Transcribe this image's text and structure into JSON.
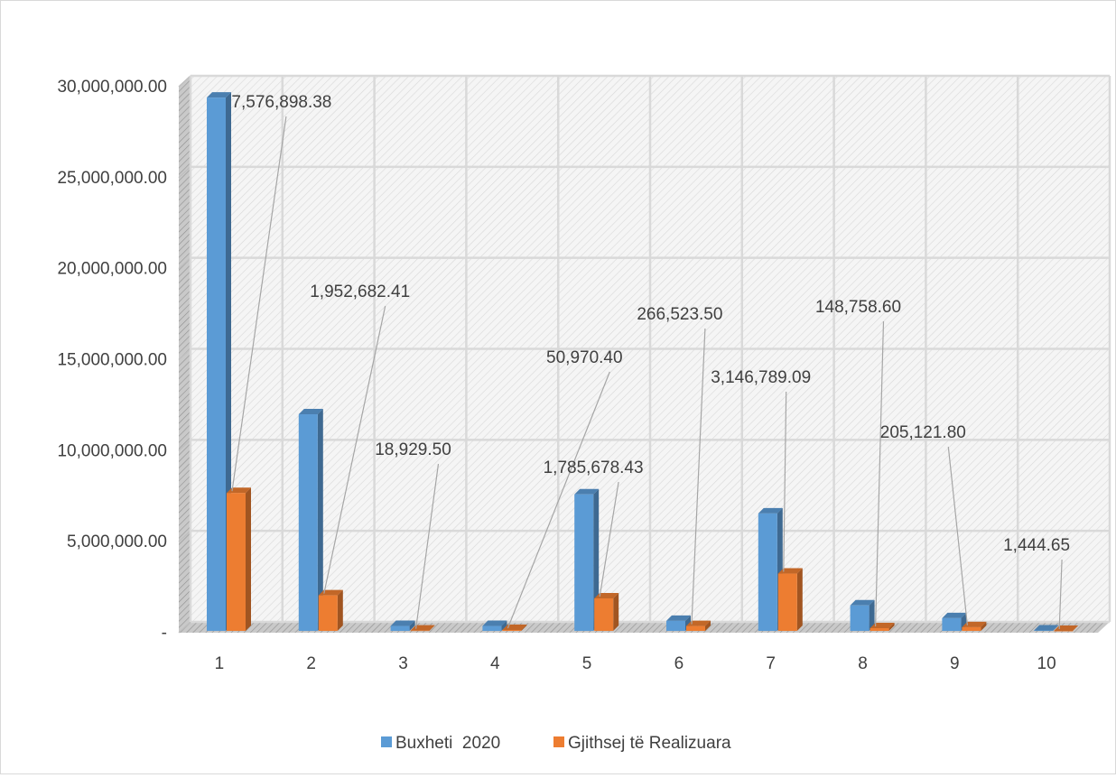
{
  "chart_data": {
    "type": "bar",
    "title": "",
    "xlabel": "",
    "ylabel": "",
    "categories": [
      "1",
      "2",
      "3",
      "4",
      "5",
      "6",
      "7",
      "8",
      "9",
      "10"
    ],
    "series": [
      {
        "name": "Buxheti  2020",
        "color": "#5b9bd5",
        "values": [
          29300000,
          11900000,
          270000,
          270000,
          7500000,
          550000,
          6450000,
          1400000,
          700000,
          25000
        ]
      },
      {
        "name": "Gjithsej të Realizuara",
        "color": "#ed7d31",
        "values": [
          7576898.38,
          1952682.41,
          18929.5,
          50970.4,
          1785678.43,
          266523.5,
          3146789.09,
          148758.6,
          205121.8,
          1444.65
        ],
        "labels": [
          "7,576,898.38",
          "1,952,682.41",
          "18,929.50",
          "50,970.40",
          "1,785,678.43",
          "266,523.50",
          "3,146,789.09",
          "148,758.60",
          "205,121.80",
          "1,444.65"
        ]
      }
    ],
    "y_ticks": [
      "-",
      "5,000,000.00",
      "10,000,000.00",
      "15,000,000.00",
      "20,000,000.00",
      "25,000,000.00",
      "30,000,000.00"
    ],
    "ylim": [
      0,
      30000000
    ],
    "grid": true,
    "legend_position": "bottom",
    "style": "3d-clustered-column"
  }
}
